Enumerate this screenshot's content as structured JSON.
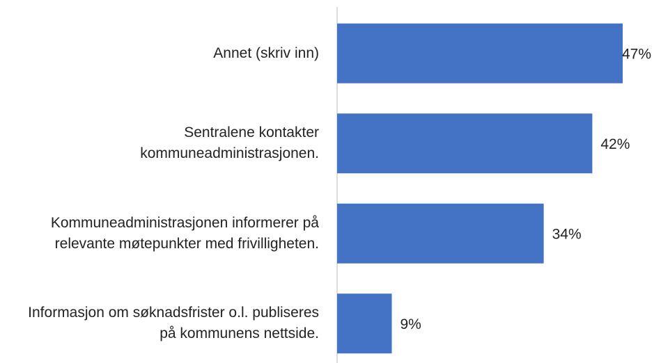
{
  "chart_data": {
    "type": "bar",
    "orientation": "horizontal",
    "categories": [
      "Annet (skriv inn)",
      "Sentralene kontakter kommuneadministrasjonen.",
      "Kommuneadministrasjonen informerer på relevante møtepunkter med frivilligheten.",
      "Informasjon om søknadsfrister o.l. publiseres på kommunens nettside."
    ],
    "values": [
      47,
      42,
      34,
      9
    ],
    "value_labels": [
      "47%",
      "42%",
      "34%",
      "9%"
    ],
    "color": "#4472c4"
  }
}
